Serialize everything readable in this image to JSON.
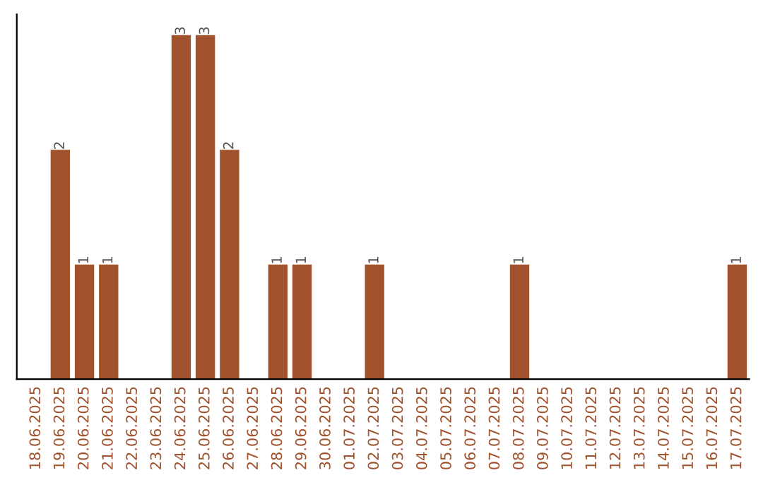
{
  "chart_data": {
    "type": "bar",
    "categories": [
      "18.06.2025",
      "19.06.2025",
      "20.06.2025",
      "21.06.2025",
      "22.06.2025",
      "23.06.2025",
      "24.06.2025",
      "25.06.2025",
      "26.06.2025",
      "27.06.2025",
      "28.06.2025",
      "29.06.2025",
      "30.06.2025",
      "01.07.2025",
      "02.07.2025",
      "03.07.2025",
      "04.07.2025",
      "05.07.2025",
      "06.07.2025",
      "07.07.2025",
      "08.07.2025",
      "09.07.2025",
      "10.07.2025",
      "11.07.2025",
      "12.07.2025",
      "13.07.2025",
      "14.07.2025",
      "15.07.2025",
      "16.07.2025",
      "17.07.2025"
    ],
    "values": [
      0,
      2,
      1,
      1,
      0,
      0,
      3,
      3,
      2,
      0,
      1,
      1,
      0,
      0,
      1,
      0,
      0,
      0,
      0,
      0,
      1,
      0,
      0,
      0,
      0,
      0,
      0,
      0,
      0,
      1
    ],
    "value_labels": [
      null,
      "2",
      "1",
      "1",
      null,
      null,
      "3",
      "3",
      "2",
      null,
      "1",
      "1",
      null,
      null,
      "1",
      null,
      null,
      null,
      null,
      null,
      "1",
      null,
      null,
      null,
      null,
      null,
      null,
      null,
      null,
      "1"
    ],
    "color": "#a0522d",
    "grid": false,
    "legend": false,
    "tick_labels": "x"
  }
}
